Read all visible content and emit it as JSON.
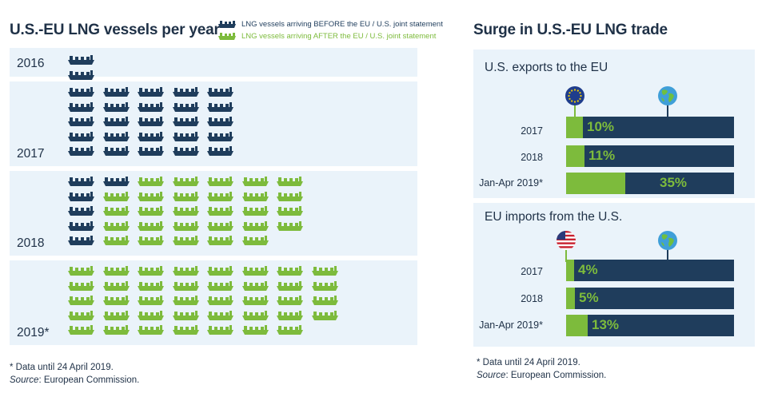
{
  "left_title": "U.S.-EU LNG vessels per year",
  "legend": {
    "before": "LNG vessels arriving  BEFORE the EU / U.S. joint statement",
    "after": "LNG vessels arriving  AFTER the EU / U.S. joint statement"
  },
  "colors": {
    "before": "#1f3d5c",
    "after": "#7dbb3c",
    "panel": "#eaf3fa"
  },
  "right_title": "Surge in U.S.-EU LNG trade",
  "footnote_left": {
    "note": "* Data until 24 April 2019.",
    "source_label": "Source",
    "source_text": ": European Commission."
  },
  "footnote_right": {
    "note": "* Data until 24 April 2019.",
    "source_label": "Source",
    "source_text": ": European Commission."
  },
  "chart_data": [
    {
      "type": "pictogram",
      "title": "U.S.-EU LNG vessels per year",
      "legend": [
        "LNG vessels arriving  BEFORE the EU / U.S. joint statement",
        "LNG vessels arriving  AFTER the EU / U.S. joint statement"
      ],
      "unit_icon": "lng-ship-icon",
      "years": [
        {
          "label": "2016",
          "before": 3,
          "after": 0
        },
        {
          "label": "2017",
          "before": 25,
          "after": 0
        },
        {
          "label": "2018",
          "before": 6,
          "after": 28
        },
        {
          "label": "2019*",
          "before": 0,
          "after": 39
        }
      ]
    },
    {
      "type": "bar",
      "title": "U.S. exports to the EU",
      "icons": [
        "eu-flag-icon",
        "globe-icon"
      ],
      "categories": [
        "2017",
        "2018",
        "Jan-Apr 2019*"
      ],
      "values": [
        10,
        11,
        35
      ],
      "value_labels": [
        "10%",
        "11%",
        "35%"
      ],
      "ylim": [
        0,
        100
      ]
    },
    {
      "type": "bar",
      "title": "EU imports from the U.S.",
      "icons": [
        "us-flag-icon",
        "globe-icon"
      ],
      "categories": [
        "2017",
        "2018",
        "Jan-Apr 2019*"
      ],
      "values": [
        4,
        5,
        13
      ],
      "value_labels": [
        "4%",
        "5%",
        "13%"
      ],
      "ylim": [
        0,
        100
      ]
    }
  ]
}
